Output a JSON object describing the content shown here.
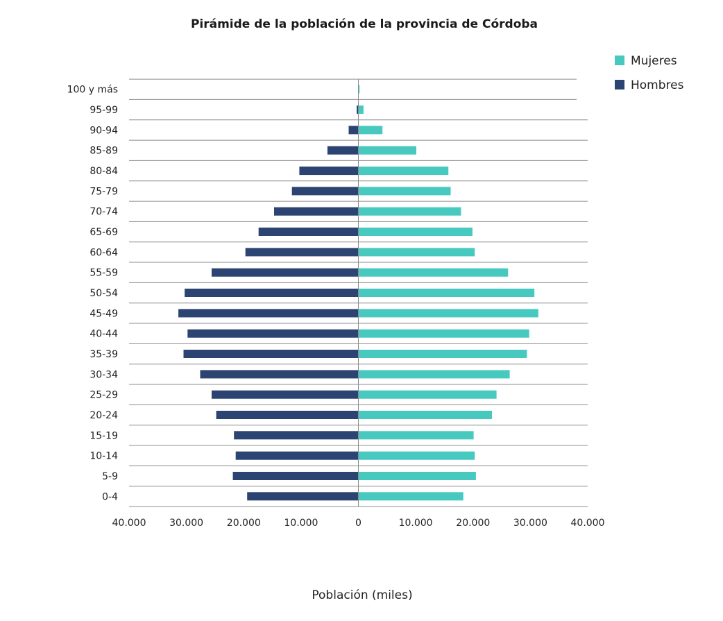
{
  "chart_data": {
    "type": "bar",
    "orientation": "horizontal",
    "subtype": "population-pyramid",
    "title": "Pirámide de la población de la provincia de Córdoba",
    "xlabel": "Población (miles)",
    "ylabel": "",
    "xlim": [
      -40000,
      40000
    ],
    "x_ticks": [
      -40000,
      -30000,
      -20000,
      -10000,
      0,
      10000,
      20000,
      30000,
      40000
    ],
    "x_tick_labels": [
      "40.000",
      "30.000",
      "20.000",
      "10.000",
      "0",
      "10.000",
      "20.000",
      "30.000",
      "40.000"
    ],
    "categories": [
      "0-4",
      "5-9",
      "10-14",
      "15-19",
      "20-24",
      "25-29",
      "30-34",
      "35-39",
      "40-44",
      "45-49",
      "50-54",
      "55-59",
      "60-64",
      "65-69",
      "70-74",
      "75-79",
      "80-84",
      "85-89",
      "90-94",
      "95-99",
      "100 y más"
    ],
    "series": [
      {
        "name": "Mujeres",
        "color": "#47c9c0",
        "values": [
          18300,
          20500,
          20300,
          20100,
          23300,
          24100,
          26400,
          29400,
          29800,
          31400,
          30700,
          26100,
          20300,
          19900,
          17900,
          16100,
          15700,
          10100,
          4200,
          900,
          200
        ]
      },
      {
        "name": "Hombres",
        "color": "#2b4471",
        "values": [
          19400,
          21900,
          21400,
          21700,
          24800,
          25600,
          27600,
          30500,
          29800,
          31400,
          30300,
          25600,
          19700,
          17400,
          14700,
          11600,
          10300,
          5400,
          1700,
          300,
          50
        ]
      }
    ],
    "legend_position": "top-right",
    "grid": true
  }
}
